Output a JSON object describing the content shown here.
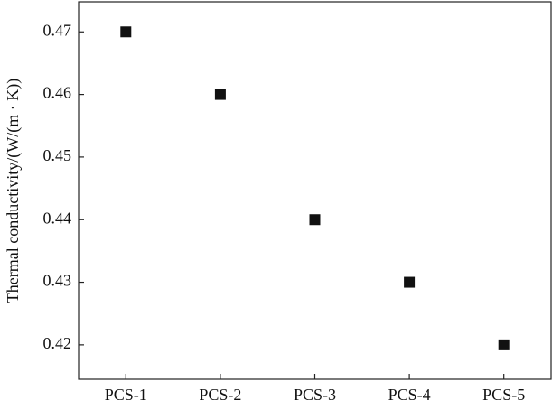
{
  "chart_data": {
    "type": "scatter",
    "y_label": "Thermal conductivity/(W/(m · K))",
    "categories": [
      "PCS-1",
      "PCS-2",
      "PCS-3",
      "PCS-4",
      "PCS-5"
    ],
    "values": [
      0.47,
      0.46,
      0.44,
      0.43,
      0.42
    ],
    "color": "#111111",
    "marker": "square",
    "ylim": [
      0.4145,
      0.4748
    ],
    "yticks": [
      0.42,
      0.43,
      0.44,
      0.45,
      0.46,
      0.47
    ],
    "grid": false
  }
}
